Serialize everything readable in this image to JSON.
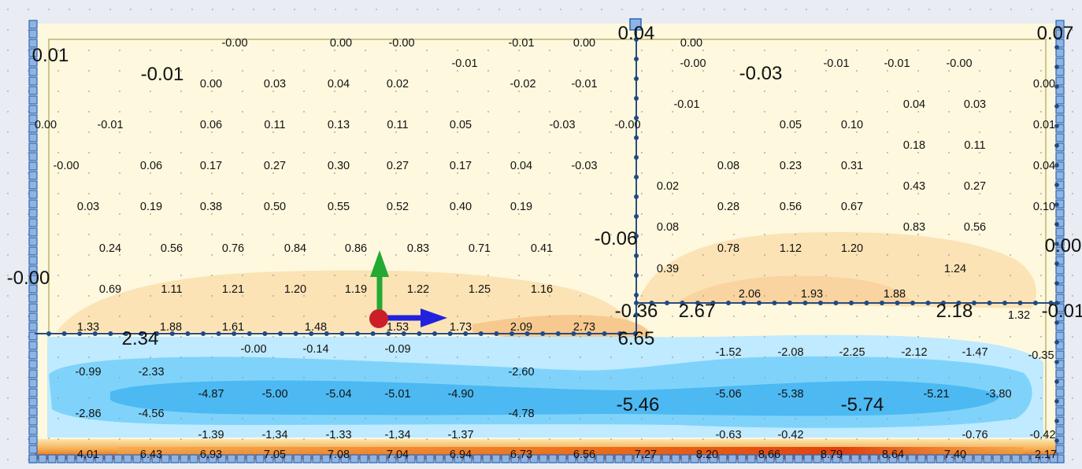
{
  "colors": {
    "background": "#e9ecf2",
    "plate": "#fef8de",
    "support_outline": "#2a64b5",
    "support_fill": "#8fb4e3",
    "mesh_line": "#2b4c7e",
    "compression_light": "#bfeaff",
    "compression_mid": "#7fd3fb",
    "compression_deep": "#4cb9f2",
    "tension_light": "#fbe3b5",
    "tension_mid": "#f7c98e",
    "tension_high": "#f08a2a",
    "tension_max": "#d42a0a",
    "axis_x": "#2222dd",
    "axis_y": "#22aa33",
    "axis_origin": "#cc1e28"
  },
  "contour_labels": [
    {
      "text": "0.01",
      "size": "big"
    },
    {
      "text": "-0.00",
      "size": "small"
    },
    {
      "text": "0.00",
      "size": "small"
    },
    {
      "text": "-0.00",
      "size": "small"
    },
    {
      "text": "-0.01",
      "size": "small"
    },
    {
      "text": "0.00",
      "size": "small"
    },
    {
      "text": "0.04",
      "size": "big"
    },
    {
      "text": "0.00",
      "size": "small"
    },
    {
      "text": "0.07",
      "size": "big"
    },
    {
      "text": "-0.01",
      "size": "big"
    },
    {
      "text": "-0.01",
      "size": "small"
    },
    {
      "text": "-0.00",
      "size": "small"
    },
    {
      "text": "-0.03",
      "size": "big"
    },
    {
      "text": "-0.01",
      "size": "small"
    },
    {
      "text": "-0.01",
      "size": "small"
    },
    {
      "text": "-0.00",
      "size": "small"
    },
    {
      "text": "0.00",
      "size": "small"
    },
    {
      "text": "0.03",
      "size": "small"
    },
    {
      "text": "0.04",
      "size": "small"
    },
    {
      "text": "0.02",
      "size": "small"
    },
    {
      "text": "-0.02",
      "size": "small"
    },
    {
      "text": "-0.01",
      "size": "small"
    },
    {
      "text": "0.00",
      "size": "small"
    },
    {
      "text": "-0.01",
      "size": "small"
    },
    {
      "text": "0.04",
      "size": "small"
    },
    {
      "text": "0.03",
      "size": "small"
    },
    {
      "text": "0.00",
      "size": "small"
    },
    {
      "text": "-0.01",
      "size": "small"
    },
    {
      "text": "0.06",
      "size": "small"
    },
    {
      "text": "0.11",
      "size": "small"
    },
    {
      "text": "0.13",
      "size": "small"
    },
    {
      "text": "0.11",
      "size": "small"
    },
    {
      "text": "0.05",
      "size": "small"
    },
    {
      "text": "-0.03",
      "size": "small"
    },
    {
      "text": "-0.00",
      "size": "small"
    },
    {
      "text": "0.05",
      "size": "small"
    },
    {
      "text": "0.10",
      "size": "small"
    },
    {
      "text": "0.01",
      "size": "small"
    },
    {
      "text": "0.18",
      "size": "small"
    },
    {
      "text": "0.11",
      "size": "small"
    },
    {
      "text": "-0.00",
      "size": "small"
    },
    {
      "text": "0.06",
      "size": "small"
    },
    {
      "text": "0.17",
      "size": "small"
    },
    {
      "text": "0.27",
      "size": "small"
    },
    {
      "text": "0.30",
      "size": "small"
    },
    {
      "text": "0.27",
      "size": "small"
    },
    {
      "text": "0.17",
      "size": "small"
    },
    {
      "text": "0.04",
      "size": "small"
    },
    {
      "text": "-0.03",
      "size": "small"
    },
    {
      "text": "0.08",
      "size": "small"
    },
    {
      "text": "0.23",
      "size": "small"
    },
    {
      "text": "0.31",
      "size": "small"
    },
    {
      "text": "0.04",
      "size": "small"
    },
    {
      "text": "0.02",
      "size": "small"
    },
    {
      "text": "0.43",
      "size": "small"
    },
    {
      "text": "0.27",
      "size": "small"
    },
    {
      "text": "0.03",
      "size": "small"
    },
    {
      "text": "0.19",
      "size": "small"
    },
    {
      "text": "0.38",
      "size": "small"
    },
    {
      "text": "0.50",
      "size": "small"
    },
    {
      "text": "0.55",
      "size": "small"
    },
    {
      "text": "0.52",
      "size": "small"
    },
    {
      "text": "0.40",
      "size": "small"
    },
    {
      "text": "0.19",
      "size": "small"
    },
    {
      "text": "0.28",
      "size": "small"
    },
    {
      "text": "0.56",
      "size": "small"
    },
    {
      "text": "0.67",
      "size": "small"
    },
    {
      "text": "0.10",
      "size": "small"
    },
    {
      "text": "0.08",
      "size": "small"
    },
    {
      "text": "0.83",
      "size": "small"
    },
    {
      "text": "0.56",
      "size": "small"
    },
    {
      "text": "-0.06",
      "size": "big"
    },
    {
      "text": "0.00",
      "size": "big"
    },
    {
      "text": "0.24",
      "size": "small"
    },
    {
      "text": "0.56",
      "size": "small"
    },
    {
      "text": "0.76",
      "size": "small"
    },
    {
      "text": "0.84",
      "size": "small"
    },
    {
      "text": "0.86",
      "size": "small"
    },
    {
      "text": "0.83",
      "size": "small"
    },
    {
      "text": "0.71",
      "size": "small"
    },
    {
      "text": "0.41",
      "size": "small"
    },
    {
      "text": "0.78",
      "size": "small"
    },
    {
      "text": "1.12",
      "size": "small"
    },
    {
      "text": "1.20",
      "size": "small"
    },
    {
      "text": "0.39",
      "size": "small"
    },
    {
      "text": "1.24",
      "size": "small"
    },
    {
      "text": "-0.00",
      "size": "big"
    },
    {
      "text": "0.69",
      "size": "small"
    },
    {
      "text": "1.11",
      "size": "small"
    },
    {
      "text": "1.21",
      "size": "small"
    },
    {
      "text": "1.20",
      "size": "small"
    },
    {
      "text": "1.19",
      "size": "small"
    },
    {
      "text": "1.22",
      "size": "small"
    },
    {
      "text": "1.25",
      "size": "small"
    },
    {
      "text": "1.16",
      "size": "small"
    },
    {
      "text": "2.06",
      "size": "small"
    },
    {
      "text": "1.93",
      "size": "small"
    },
    {
      "text": "1.88",
      "size": "small"
    },
    {
      "text": "-0.36",
      "size": "big"
    },
    {
      "text": "2.67",
      "size": "big"
    },
    {
      "text": "2.18",
      "size": "big"
    },
    {
      "text": "1.32",
      "size": "small"
    },
    {
      "text": "-0.01",
      "size": "big"
    },
    {
      "text": "1.33",
      "size": "small"
    },
    {
      "text": "2.34",
      "size": "big"
    },
    {
      "text": "1.88",
      "size": "small"
    },
    {
      "text": "1.61",
      "size": "small"
    },
    {
      "text": "1.48",
      "size": "small"
    },
    {
      "text": "1.53",
      "size": "small"
    },
    {
      "text": "1.73",
      "size": "small"
    },
    {
      "text": "2.09",
      "size": "small"
    },
    {
      "text": "2.73",
      "size": "small"
    },
    {
      "text": "6.65",
      "size": "big"
    },
    {
      "text": "-0.00",
      "size": "small"
    },
    {
      "text": "-0.14",
      "size": "small"
    },
    {
      "text": "-0.09",
      "size": "small"
    },
    {
      "text": "-1.52",
      "size": "small"
    },
    {
      "text": "-2.08",
      "size": "small"
    },
    {
      "text": "-2.25",
      "size": "small"
    },
    {
      "text": "-2.12",
      "size": "small"
    },
    {
      "text": "-1.47",
      "size": "small"
    },
    {
      "text": "-0.35",
      "size": "small"
    },
    {
      "text": "-0.99",
      "size": "small"
    },
    {
      "text": "-2.33",
      "size": "small"
    },
    {
      "text": "-2.60",
      "size": "small"
    },
    {
      "text": "-4.87",
      "size": "small"
    },
    {
      "text": "-5.00",
      "size": "small"
    },
    {
      "text": "-5.04",
      "size": "small"
    },
    {
      "text": "-5.01",
      "size": "small"
    },
    {
      "text": "-4.90",
      "size": "small"
    },
    {
      "text": "-5.06",
      "size": "small"
    },
    {
      "text": "-5.38",
      "size": "small"
    },
    {
      "text": "-5.21",
      "size": "small"
    },
    {
      "text": "-3.80",
      "size": "small"
    },
    {
      "text": "-5.46",
      "size": "big"
    },
    {
      "text": "-5.74",
      "size": "big"
    },
    {
      "text": "-2.86",
      "size": "small"
    },
    {
      "text": "-4.56",
      "size": "small"
    },
    {
      "text": "-4.78",
      "size": "small"
    },
    {
      "text": "-1.39",
      "size": "small"
    },
    {
      "text": "-1.34",
      "size": "small"
    },
    {
      "text": "-1.33",
      "size": "small"
    },
    {
      "text": "-1.34",
      "size": "small"
    },
    {
      "text": "-1.37",
      "size": "small"
    },
    {
      "text": "-0.63",
      "size": "small"
    },
    {
      "text": "-0.42",
      "size": "small"
    },
    {
      "text": "-0.76",
      "size": "small"
    },
    {
      "text": "-0.42",
      "size": "small"
    },
    {
      "text": "4.01",
      "size": "small"
    },
    {
      "text": "6.43",
      "size": "small"
    },
    {
      "text": "6.93",
      "size": "small"
    },
    {
      "text": "7.05",
      "size": "small"
    },
    {
      "text": "7.08",
      "size": "small"
    },
    {
      "text": "7.04",
      "size": "small"
    },
    {
      "text": "6.94",
      "size": "small"
    },
    {
      "text": "6.73",
      "size": "small"
    },
    {
      "text": "6.56",
      "size": "small"
    },
    {
      "text": "7.27",
      "size": "small"
    },
    {
      "text": "8.20",
      "size": "small"
    },
    {
      "text": "8.66",
      "size": "small"
    },
    {
      "text": "8.79",
      "size": "small"
    },
    {
      "text": "8.64",
      "size": "small"
    },
    {
      "text": "7.40",
      "size": "small"
    },
    {
      "text": "2.17",
      "size": "small"
    }
  ]
}
